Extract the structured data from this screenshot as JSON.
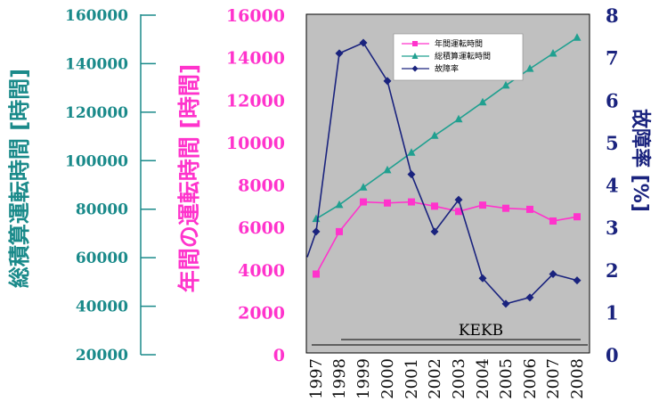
{
  "chart_data": {
    "type": "line",
    "categories": [
      "1997",
      "1998",
      "1999",
      "2000",
      "2001",
      "2002",
      "2003",
      "2004",
      "2005",
      "2006",
      "2007",
      "2008"
    ],
    "axes": {
      "cumulative": {
        "label": "総積算運転時間 [時間]",
        "ticks": [
          "160000",
          "140000",
          "120000",
          "100000",
          "80000",
          "60000",
          "40000",
          "20000"
        ],
        "range": [
          20000,
          160000
        ],
        "color": "#1a8a8a"
      },
      "annual": {
        "label": "年間の運転時間 [時間]",
        "ticks": [
          "16000",
          "14000",
          "12000",
          "10000",
          "8000",
          "6000",
          "4000",
          "2000",
          "0"
        ],
        "range": [
          0,
          16000
        ],
        "color": "#ff33cc"
      },
      "failure": {
        "label": "故障率 [%]",
        "ticks": [
          "8",
          "7",
          "6",
          "5",
          "4",
          "3",
          "2",
          "1",
          "0"
        ],
        "range": [
          0,
          8
        ],
        "color": "#1a237e"
      }
    },
    "series": [
      {
        "name": "年間運転時間",
        "axis": "annual",
        "color": "#ff33cc",
        "marker": "square",
        "values": [
          3800,
          5800,
          7200,
          7150,
          7200,
          7000,
          6750,
          7050,
          6900,
          6850,
          6300,
          6500
        ]
      },
      {
        "name": "総積算運転時間",
        "axis": "cumulative",
        "color": "#20a090",
        "marker": "triangle",
        "values": [
          76000,
          81800,
          89000,
          96100,
          103300,
          110300,
          117100,
          124100,
          131000,
          137900,
          144200,
          150700
        ]
      },
      {
        "name": "故障率",
        "axis": "failure",
        "color": "#1a237e",
        "marker": "diamond",
        "values": [
          2.9,
          7.1,
          7.35,
          6.45,
          4.25,
          2.9,
          3.65,
          1.8,
          1.2,
          1.35,
          1.9,
          1.75
        ],
        "start_value": 2.3
      }
    ],
    "annotation": "KEKB",
    "plot_background": "#c0c0c0",
    "legend_position": "top-right",
    "grid": false
  }
}
